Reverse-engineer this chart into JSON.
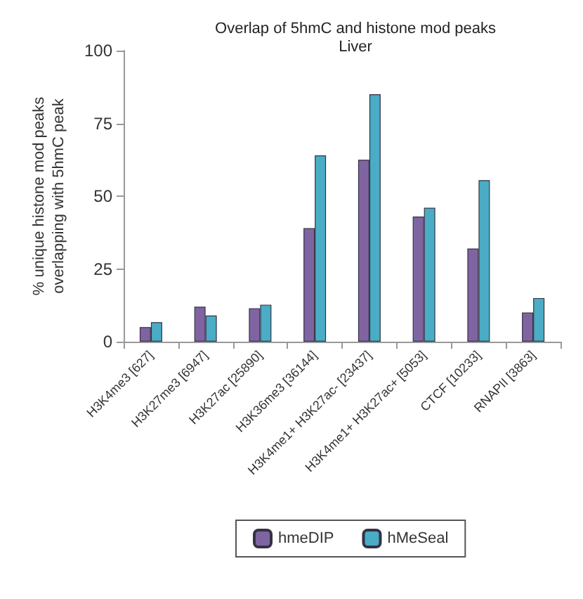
{
  "chart_data": {
    "type": "bar",
    "title": "Overlap of 5hmC and histone mod peaks",
    "subtitle": "Liver",
    "ylabel": "% unique histone mod peaks\noverlapping with 5hmC peak",
    "categories": [
      "H3K4me3 [627]",
      "H3K27me3 [6947]",
      "H3K27ac [25890]",
      "H3K36me3 [36144]",
      "H3K4me1+ H3K27ac- [23437]",
      "H3K4me1+ H3K27ac+ [5053]",
      "CTCF [10233]",
      "RNAPII [3863]"
    ],
    "series": [
      {
        "name": "hmeDIP",
        "color": "#8064a2",
        "values": [
          5,
          12,
          11.5,
          39,
          62.5,
          43,
          32,
          10
        ]
      },
      {
        "name": "hMeSeal",
        "color": "#4bacc6",
        "values": [
          6.7,
          9,
          12.7,
          64,
          85,
          46,
          55.5,
          15
        ]
      }
    ],
    "ylim": [
      0,
      100
    ],
    "yticks": [
      0,
      25,
      50,
      75,
      100
    ],
    "grid": false,
    "legend": "bottom"
  }
}
